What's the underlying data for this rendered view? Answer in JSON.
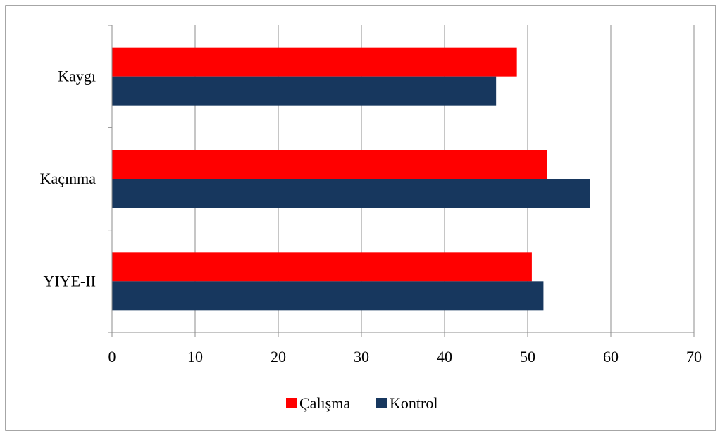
{
  "chart_data": {
    "type": "bar",
    "orientation": "horizontal",
    "categories": [
      "Kaygı",
      "Kaçınma",
      "YIYE-II"
    ],
    "series": [
      {
        "name": "Çalışma",
        "color": "#ff0000",
        "values": [
          48.7,
          52.3,
          50.5
        ]
      },
      {
        "name": "Kontrol",
        "color": "#17375e",
        "values": [
          46.2,
          57.5,
          51.9
        ]
      }
    ],
    "xlim": [
      0,
      70
    ],
    "xticks": [
      "0",
      "10",
      "20",
      "30",
      "40",
      "50",
      "60",
      "70"
    ],
    "title": "",
    "xlabel": "",
    "ylabel": "",
    "grid": "vertical",
    "legend_position": "bottom"
  }
}
